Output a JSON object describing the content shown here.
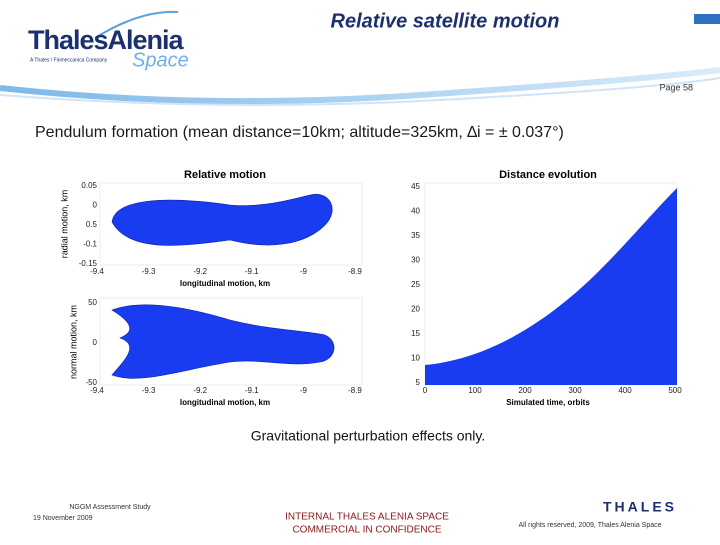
{
  "header": {
    "logo_main": "ThalesAlenia",
    "logo_space": "Space",
    "logo_tagline": "A Thales / Finmeccanica Company",
    "title": "Relative satellite motion",
    "page": "Page 58"
  },
  "subtitle": "Pendulum formation (mean distance=10km; altitude=325km, ∆i = ± 0.037°)",
  "plots": {
    "relative": {
      "title": "Relative motion",
      "top_ylabel": "radial motion, km",
      "top_yticks": [
        "0.05",
        "0",
        "0.5",
        "-0.1",
        "-0.15"
      ],
      "top_xticks": [
        "-9.4",
        "-9.3",
        "-9.2",
        "-9.1",
        "-9",
        "-8.9"
      ],
      "top_xlabel": "longitudinal motion, km",
      "bottom_ylabel": "normal motion, km",
      "bottom_yticks": [
        "50",
        "0",
        "-50"
      ],
      "bottom_xticks": [
        "-9.4",
        "-9.3",
        "-9.2",
        "-9.1",
        "-9",
        "-8.9"
      ],
      "bottom_xlabel": "longitudinal motion, km"
    },
    "distance": {
      "title": "Distance evolution",
      "yticks": [
        "45",
        "40",
        "35",
        "30",
        "25",
        "20",
        "15",
        "10",
        "5"
      ],
      "xticks": [
        "0",
        "100",
        "200",
        "300",
        "400",
        "500"
      ],
      "xlabel": "Simulated time, orbits"
    }
  },
  "caption": "Gravitational perturbation effects only.",
  "footer": {
    "study": "NGGM Assessment Study",
    "date": "19 November 2009",
    "confidential_1": "INTERNAL THALES ALENIA SPACE",
    "confidential_2": "COMMERCIAL IN CONFIDENCE",
    "brand": "THALES",
    "rights": "All rights reserved, 2009, Thales Alenia Space"
  }
}
